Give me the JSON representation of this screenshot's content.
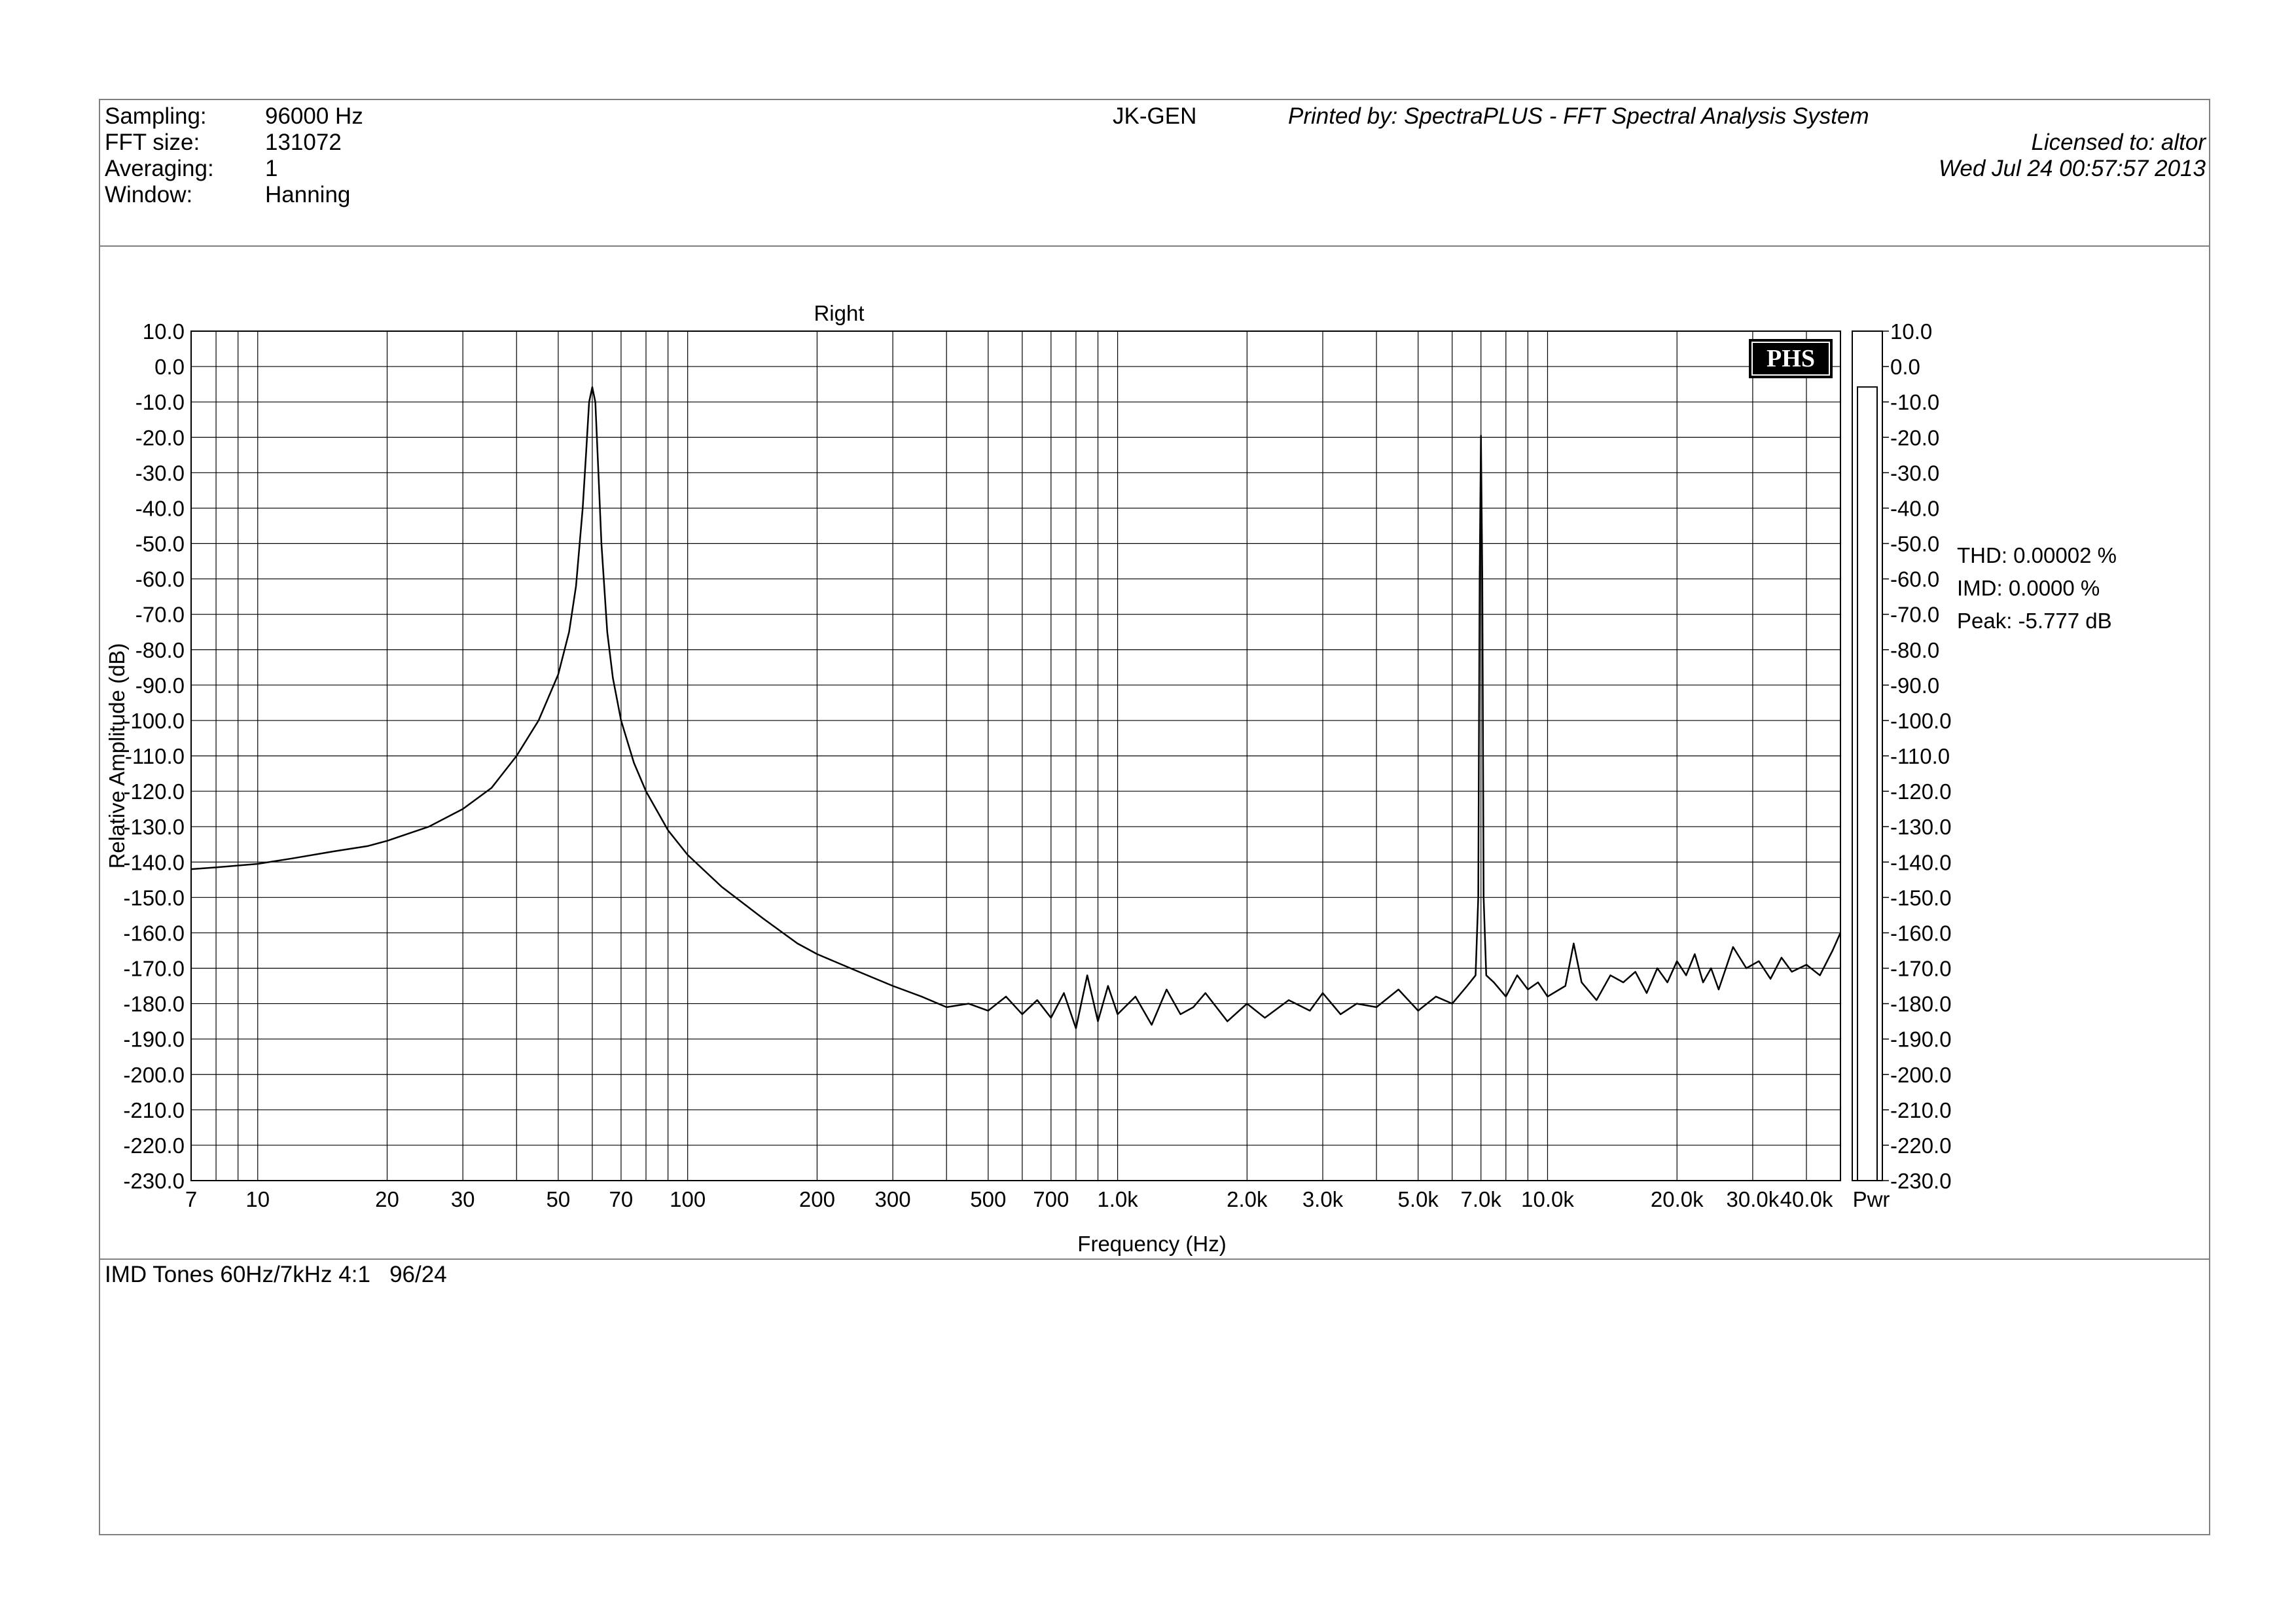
{
  "header": {
    "settings": [
      {
        "label": "Sampling:",
        "value": "96000 Hz"
      },
      {
        "label": "FFT size:",
        "value": "131072"
      },
      {
        "label": "Averaging:",
        "value": "1"
      },
      {
        "label": "Window:",
        "value": "Hanning"
      }
    ],
    "device": "JK-GEN",
    "printed_by": "Printed by: SpectraPLUS - FFT Spectral Analysis System",
    "licensed_to": "Licensed to: altor",
    "datetime": "Wed Jul 24 00:57:57 2013"
  },
  "notes": "IMD Tones 60Hz/7kHz 4:1   96/24",
  "logo_text": "PHS",
  "stats": [
    {
      "label": "THD:",
      "value": "0.00002 %"
    },
    {
      "label": "IMD:",
      "value": "0.0000 %"
    },
    {
      "label": "Peak:",
      "value": "-5.777 dB"
    }
  ],
  "chart_data": {
    "type": "line",
    "title": "Right",
    "xlabel": "Frequency (Hz)",
    "ylabel": "Relative Amplitude (dB)",
    "x_scale": "log",
    "xlim": [
      7,
      48000
    ],
    "ylim": [
      -230,
      10
    ],
    "grid": true,
    "y_ticks": [
      10,
      0,
      -10,
      -20,
      -30,
      -40,
      -50,
      -60,
      -70,
      -80,
      -90,
      -100,
      -110,
      -120,
      -130,
      -140,
      -150,
      -160,
      -170,
      -180,
      -190,
      -200,
      -210,
      -220,
      -230
    ],
    "y_tick_labels": [
      "10.0",
      "0.0",
      "-10.0",
      "-20.0",
      "-30.0",
      "-40.0",
      "-50.0",
      "-60.0",
      "-70.0",
      "-80.0",
      "-90.0",
      "-100.0",
      "-110.0",
      "-120.0",
      "-130.0",
      "-140.0",
      "-150.0",
      "-160.0",
      "-170.0",
      "-180.0",
      "-190.0",
      "-200.0",
      "-210.0",
      "-220.0",
      "-230.0"
    ],
    "x_ticks": [
      7,
      10,
      20,
      30,
      50,
      70,
      100,
      200,
      300,
      500,
      700,
      1000,
      2000,
      3000,
      5000,
      7000,
      10000,
      20000,
      30000,
      40000
    ],
    "x_tick_labels": [
      "7",
      "10",
      "20",
      "30",
      "50",
      "70",
      "100",
      "200",
      "300",
      "500",
      "700",
      "1.0k",
      "2.0k",
      "3.0k",
      "5.0k",
      "7.0k",
      "10.0k",
      "20.0k",
      "30.0k",
      "40.0k"
    ],
    "series": [
      {
        "x": [
          7,
          8,
          10,
          12,
          15,
          18,
          20,
          25,
          30,
          35,
          40,
          45,
          50,
          53,
          55,
          57,
          58,
          59,
          60,
          61,
          62,
          63,
          65,
          67,
          70,
          75,
          80,
          90,
          100,
          120,
          150,
          180,
          200,
          250,
          300,
          350,
          400,
          450,
          500,
          550,
          600,
          650,
          700,
          750,
          800,
          850,
          900,
          950,
          1000,
          1100,
          1200,
          1300,
          1400,
          1500,
          1600,
          1800,
          2000,
          2200,
          2500,
          2800,
          3000,
          3300,
          3600,
          4000,
          4500,
          5000,
          5500,
          6000,
          6500,
          6800,
          6900,
          6950,
          7000,
          7050,
          7100,
          7200,
          7500,
          8000,
          8500,
          9000,
          9500,
          10000,
          11000,
          11500,
          12000,
          13000,
          14000,
          15000,
          16000,
          17000,
          18000,
          19000,
          20000,
          21000,
          22000,
          23000,
          24000,
          25000,
          27000,
          29000,
          31000,
          33000,
          35000,
          37000,
          40000,
          43000,
          46000,
          48000
        ],
        "y": [
          -142,
          -141.5,
          -140.5,
          -139,
          -137,
          -135.5,
          -134,
          -130,
          -125,
          -119,
          -110,
          -100,
          -87,
          -75,
          -62,
          -40,
          -25,
          -10,
          -5.8,
          -10,
          -30,
          -50,
          -75,
          -88,
          -100,
          -112,
          -120,
          -131,
          -138,
          -147,
          -156,
          -163,
          -166,
          -171,
          -175,
          -178,
          -181,
          -180,
          -182,
          -178,
          -183,
          -179,
          -184,
          -177,
          -187,
          -172,
          -185,
          -175,
          -183,
          -178,
          -186,
          -176,
          -183,
          -181,
          -177,
          -185,
          -180,
          -184,
          -179,
          -182,
          -177,
          -183,
          -180,
          -181,
          -176,
          -182,
          -178,
          -180,
          -175,
          -172,
          -150,
          -60,
          -19.5,
          -60,
          -150,
          -172,
          -174,
          -178,
          -172,
          -176,
          -174,
          -178,
          -175,
          -163,
          -174,
          -179,
          -172,
          -174,
          -171,
          -177,
          -170,
          -174,
          -168,
          -172,
          -166,
          -174,
          -170,
          -176,
          -164,
          -170,
          -168,
          -173,
          -167,
          -171,
          -169,
          -172,
          -165,
          -160
        ]
      }
    ],
    "pwr_bar": {
      "label": "Pwr",
      "level_db": -5.777,
      "ylim": [
        -230,
        10
      ]
    }
  }
}
